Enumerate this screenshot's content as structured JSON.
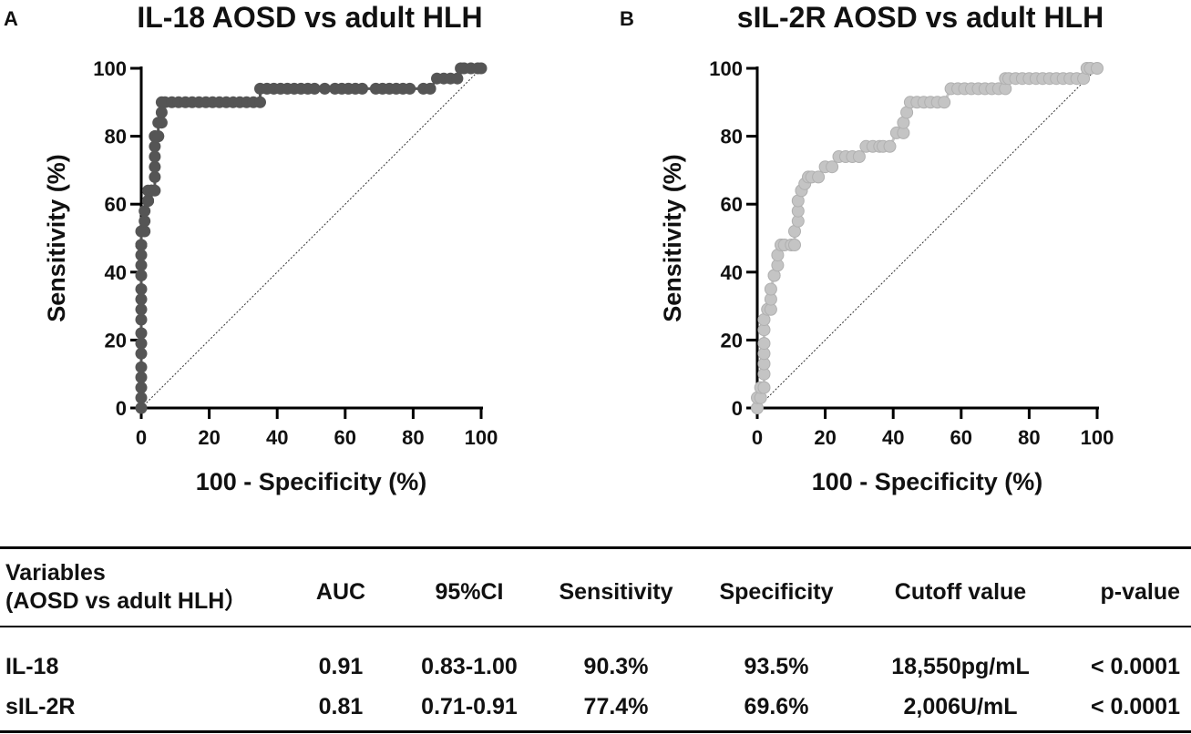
{
  "chart_data": [
    {
      "panel_label": "A",
      "type": "line",
      "title": "IL-18 AOSD vs adult HLH",
      "xlabel": "100 - Specificity (%)",
      "ylabel": "Sensitivity (%)",
      "xlim": [
        0,
        100
      ],
      "ylim": [
        0,
        100
      ],
      "xticks": [
        0,
        20,
        40,
        60,
        80,
        100
      ],
      "yticks": [
        0,
        20,
        40,
        60,
        80,
        100
      ],
      "color": "#555555",
      "reference_line": true,
      "x": [
        0,
        0,
        0,
        0,
        0,
        0,
        0,
        0,
        0,
        0,
        0,
        0,
        0,
        0,
        0,
        0,
        0,
        0,
        0,
        0,
        1,
        1,
        1,
        2,
        2,
        2,
        2,
        2,
        3,
        3,
        3,
        4,
        4,
        4,
        4,
        4,
        4,
        4,
        4,
        5,
        5,
        5,
        6,
        6,
        6,
        7,
        9,
        11,
        13,
        15,
        17,
        19,
        21,
        23,
        25,
        27,
        29,
        31,
        33,
        35,
        35,
        37,
        39,
        41,
        43,
        45,
        47,
        49,
        51,
        54,
        57,
        59,
        61,
        63,
        65,
        69,
        71,
        73,
        75,
        77,
        79,
        83,
        85,
        87,
        89,
        91,
        93,
        94,
        95,
        97,
        99,
        100
      ],
      "y": [
        0,
        3,
        6,
        9,
        12,
        16,
        19,
        22,
        26,
        29,
        32,
        35,
        39,
        42,
        45,
        48,
        48,
        48,
        48,
        52,
        52,
        55,
        58,
        61,
        61,
        61,
        61,
        64,
        64,
        64,
        64,
        64,
        68,
        71,
        74,
        77,
        80,
        80,
        80,
        80,
        80,
        84,
        84,
        87,
        90,
        90,
        90,
        90,
        90,
        90,
        90,
        90,
        90,
        90,
        90,
        90,
        90,
        90,
        90,
        90,
        94,
        94,
        94,
        94,
        94,
        94,
        94,
        94,
        94,
        94,
        94,
        94,
        94,
        94,
        94,
        94,
        94,
        94,
        94,
        94,
        94,
        94,
        94,
        97,
        97,
        97,
        97,
        100,
        100,
        100,
        100,
        100
      ]
    },
    {
      "panel_label": "B",
      "type": "line",
      "title": "sIL-2R AOSD vs adult HLH",
      "xlabel": "100 - Specificity (%)",
      "ylabel": "Sensitivity (%)",
      "xlim": [
        0,
        100
      ],
      "ylim": [
        0,
        100
      ],
      "xticks": [
        0,
        20,
        40,
        60,
        80,
        100
      ],
      "yticks": [
        0,
        20,
        40,
        60,
        80,
        100
      ],
      "color": "#c4c4c4",
      "reference_line": true,
      "x": [
        0,
        0,
        1,
        1,
        2,
        2,
        2,
        2,
        2,
        2,
        2,
        3,
        4,
        4,
        4,
        5,
        5,
        6,
        6,
        7,
        7,
        8,
        10,
        11,
        11,
        12,
        12,
        12,
        13,
        13,
        14,
        15,
        16,
        18,
        20,
        22,
        24,
        26,
        28,
        30,
        32,
        34,
        36,
        37,
        39,
        41,
        43,
        43,
        44,
        45,
        47,
        49,
        51,
        53,
        55,
        57,
        59,
        61,
        63,
        65,
        67,
        69,
        71,
        73,
        73,
        74,
        76,
        78,
        80,
        82,
        84,
        86,
        88,
        90,
        92,
        94,
        96,
        97,
        98,
        100
      ],
      "y": [
        0,
        3,
        3,
        6,
        6,
        10,
        13,
        16,
        19,
        23,
        26,
        29,
        29,
        32,
        35,
        39,
        39,
        42,
        45,
        48,
        48,
        48,
        48,
        48,
        52,
        55,
        58,
        61,
        64,
        64,
        66,
        68,
        68,
        68,
        71,
        71,
        74,
        74,
        74,
        74,
        77,
        77,
        77,
        77,
        77,
        81,
        81,
        84,
        87,
        90,
        90,
        90,
        90,
        90,
        90,
        94,
        94,
        94,
        94,
        94,
        94,
        94,
        94,
        94,
        97,
        97,
        97,
        97,
        97,
        97,
        97,
        97,
        97,
        97,
        97,
        97,
        97,
        100,
        100,
        100
      ]
    }
  ],
  "table": {
    "headers": {
      "variables_line1": "Variables",
      "variables_line2": "(AOSD vs adult HLH）",
      "auc": "AUC",
      "ci": "95%CI",
      "sensitivity": "Sensitivity",
      "specificity": "Specificity",
      "cutoff": "Cutoff value",
      "pvalue": "p-value"
    },
    "rows": [
      {
        "variable": "IL-18",
        "auc": "0.91",
        "ci": "0.83-1.00",
        "sensitivity": "90.3%",
        "specificity": "93.5%",
        "cutoff": "18,550pg/mL",
        "pvalue": "< 0.0001"
      },
      {
        "variable": "sIL-2R",
        "auc": "0.81",
        "ci": "0.71-0.91",
        "sensitivity": "77.4%",
        "specificity": "69.6%",
        "cutoff": "2,006U/mL",
        "pvalue": "< 0.0001"
      }
    ]
  }
}
